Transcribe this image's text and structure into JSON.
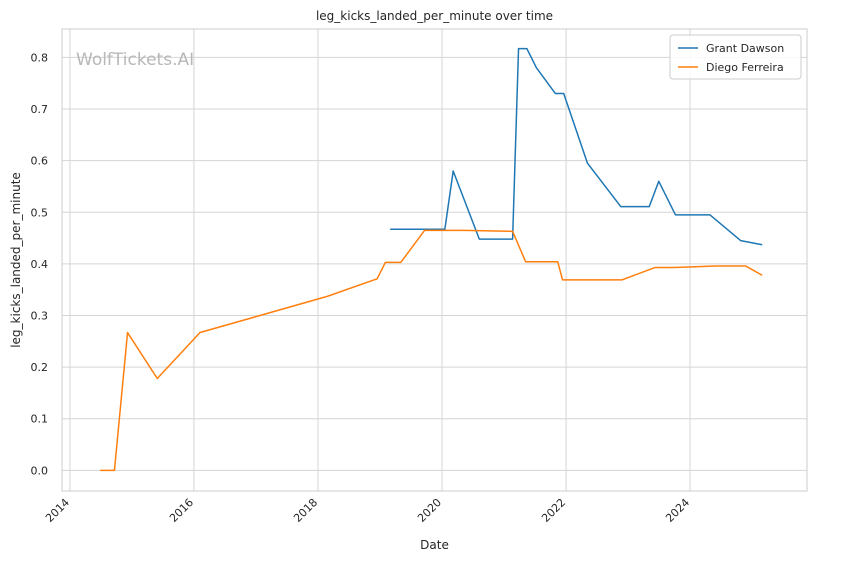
{
  "chart_data": {
    "type": "line",
    "title": "leg_kicks_landed_per_minute over time",
    "xlabel": "Date",
    "ylabel": "leg_kicks_landed_per_minute",
    "watermark": "WolfTickets.AI",
    "grid": true,
    "legend_position": "top-right",
    "xlim": [
      "2013-11-15",
      "2025-11-20"
    ],
    "ylim": [
      -0.04,
      0.855
    ],
    "x_ticks": [
      "2014",
      "2016",
      "2018",
      "2020",
      "2022",
      "2024"
    ],
    "y_ticks": [
      "0.0",
      "0.1",
      "0.2",
      "0.3",
      "0.4",
      "0.5",
      "0.6",
      "0.7",
      "0.8"
    ],
    "series": [
      {
        "name": "Grant Dawson",
        "color": "#1f77b4",
        "x": [
          "2019-03-02",
          "2020-01-18",
          "2020-03-07",
          "2020-08-08",
          "2021-02-20",
          "2021-03-27",
          "2021-05-15",
          "2021-07-10",
          "2021-10-30",
          "2021-12-18",
          "2022-05-07",
          "2022-11-19",
          "2023-05-06",
          "2023-07-01",
          "2023-10-07",
          "2024-04-27",
          "2024-10-26",
          "2025-03-01"
        ],
        "y": [
          0.467,
          0.467,
          0.58,
          0.448,
          0.448,
          0.817,
          0.817,
          0.78,
          0.73,
          0.73,
          0.595,
          0.511,
          0.511,
          0.56,
          0.495,
          0.495,
          0.445,
          0.437
        ]
      },
      {
        "name": "Diego Ferreira",
        "color": "#ff7f0e",
        "x": [
          "2014-06-28",
          "2014-09-20",
          "2014-12-06",
          "2015-05-30",
          "2016-02-06",
          "2018-02-24",
          "2018-12-15",
          "2019-02-02",
          "2019-05-04",
          "2019-09-21",
          "2020-05-09",
          "2021-02-20",
          "2021-05-08",
          "2021-11-13",
          "2021-12-11",
          "2022-11-26",
          "2023-06-10",
          "2023-09-30",
          "2024-06-01",
          "2024-11-23",
          "2025-03-01"
        ],
        "y": [
          0.0,
          0.0,
          0.267,
          0.178,
          0.267,
          0.337,
          0.371,
          0.403,
          0.403,
          0.465,
          0.465,
          0.463,
          0.404,
          0.404,
          0.369,
          0.369,
          0.393,
          0.393,
          0.396,
          0.396,
          0.378
        ]
      }
    ]
  }
}
